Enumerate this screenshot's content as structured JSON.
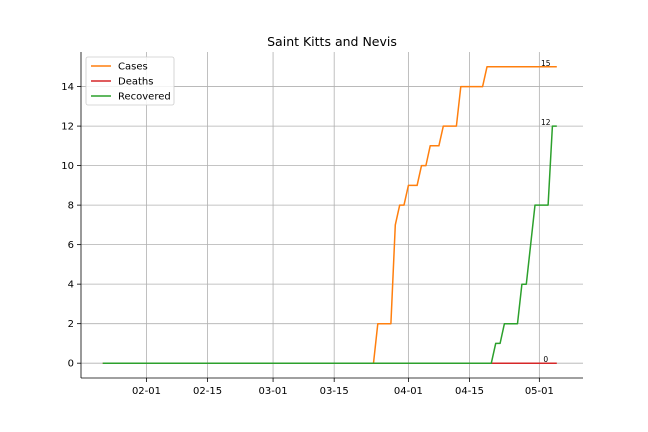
{
  "chart_data": {
    "type": "line",
    "title": "Saint Kitts and Nevis",
    "xlabel": "",
    "ylabel": "",
    "x_ticks": [
      "02-01",
      "02-15",
      "03-01",
      "03-15",
      "04-01",
      "04-15",
      "05-01"
    ],
    "x_tick_dates": [
      "2020-02-01",
      "2020-02-15",
      "2020-03-01",
      "2020-03-15",
      "2020-04-01",
      "2020-04-15",
      "2020-05-01"
    ],
    "y_ticks": [
      0,
      2,
      4,
      6,
      8,
      10,
      12,
      14
    ],
    "xlim": [
      "2020-01-17",
      "2020-05-11"
    ],
    "ylim": [
      -0.75,
      15.75
    ],
    "grid": true,
    "legend_position": "top-left",
    "series": [
      {
        "name": "Cases",
        "color": "#ff7f0e",
        "points": [
          [
            "2020-01-22",
            0
          ],
          [
            "2020-03-24",
            0
          ],
          [
            "2020-03-25",
            2
          ],
          [
            "2020-03-28",
            2
          ],
          [
            "2020-03-29",
            7
          ],
          [
            "2020-03-30",
            8
          ],
          [
            "2020-03-31",
            8
          ],
          [
            "2020-04-01",
            9
          ],
          [
            "2020-04-03",
            9
          ],
          [
            "2020-04-04",
            10
          ],
          [
            "2020-04-05",
            10
          ],
          [
            "2020-04-06",
            11
          ],
          [
            "2020-04-08",
            11
          ],
          [
            "2020-04-09",
            12
          ],
          [
            "2020-04-12",
            12
          ],
          [
            "2020-04-13",
            14
          ],
          [
            "2020-04-18",
            14
          ],
          [
            "2020-04-19",
            15
          ],
          [
            "2020-05-05",
            15
          ]
        ]
      },
      {
        "name": "Deaths",
        "color": "#d62728",
        "points": [
          [
            "2020-01-22",
            0
          ],
          [
            "2020-05-05",
            0
          ]
        ]
      },
      {
        "name": "Recovered",
        "color": "#2ca02c",
        "points": [
          [
            "2020-01-22",
            0
          ],
          [
            "2020-04-20",
            0
          ],
          [
            "2020-04-21",
            1
          ],
          [
            "2020-04-22",
            1
          ],
          [
            "2020-04-23",
            2
          ],
          [
            "2020-04-26",
            2
          ],
          [
            "2020-04-27",
            4
          ],
          [
            "2020-04-28",
            4
          ],
          [
            "2020-04-30",
            8
          ],
          [
            "2020-05-03",
            8
          ],
          [
            "2020-05-04",
            12
          ],
          [
            "2020-05-05",
            12
          ]
        ]
      }
    ],
    "end_labels": [
      {
        "series": "Cases",
        "text": "15"
      },
      {
        "series": "Recovered",
        "text": "12"
      },
      {
        "series": "Deaths",
        "text": "0"
      }
    ]
  }
}
